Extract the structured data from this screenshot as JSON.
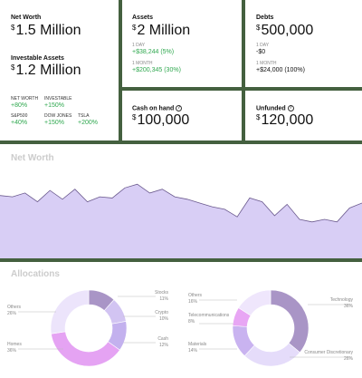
{
  "net_worth_card": {
    "title": "Net Worth",
    "currency": "$",
    "value": "1.5 Million",
    "investable_label": "Investable Assets",
    "investable_currency": "$",
    "investable_value": "1.2 Million",
    "comparisons": [
      {
        "label": "NET WORTH",
        "value": "+80%"
      },
      {
        "label": "INVESTABLE",
        "value": "+150%"
      },
      {
        "label": "S&P500",
        "value": "+40%"
      },
      {
        "label": "DOW JONES",
        "value": "+150%"
      },
      {
        "label": "TSLA",
        "value": "+200%"
      }
    ]
  },
  "assets_card": {
    "title": "Assets",
    "currency": "$",
    "value": "2 Million",
    "day_label": "1 DAY",
    "day_change": "+$38,244 (5%)",
    "month_label": "1 MONTH",
    "month_change": "+$200,345 (30%)"
  },
  "debts_card": {
    "title": "Debts",
    "currency": "$",
    "value": "500,000",
    "day_label": "1 DAY",
    "day_change": "-$0",
    "month_label": "1 MONTH",
    "month_change": "+$24,000 (100%)"
  },
  "cash_card": {
    "title": "Cash on hand",
    "info_icon": "info-icon",
    "currency": "$",
    "value": "100,000"
  },
  "unfunded_card": {
    "title": "Unfunded",
    "info_icon": "info-icon",
    "currency": "$",
    "value": "120,000"
  },
  "net_worth_chart": {
    "title": "Net Worth",
    "fill_color": "#d8cef5",
    "line_color": "#6b5a8e",
    "chart_data": {
      "type": "area",
      "values": [
        50,
        49,
        52,
        45,
        54,
        47,
        55,
        45,
        49,
        48,
        56,
        59,
        52,
        55,
        49,
        47,
        44,
        41,
        39,
        33,
        48,
        45,
        34,
        43,
        31,
        29,
        31,
        29,
        40,
        44
      ]
    }
  },
  "allocations": {
    "title": "Allocations",
    "donut1": {
      "slices": [
        {
          "name": "Stocks",
          "pct": 11,
          "color": "#a995c6"
        },
        {
          "name": "Crypto",
          "pct": 10,
          "color": "#d2c4f2"
        },
        {
          "name": "Cash",
          "pct": 12,
          "color": "#c3b1ee"
        },
        {
          "name": "Homes",
          "pct": 36,
          "color": "#e5a3f3"
        },
        {
          "name": "Others",
          "pct": 26,
          "color": "#ece4fb"
        }
      ],
      "labels": {
        "stocks": {
          "name": "Stocks",
          "pct": "11%"
        },
        "crypto": {
          "name": "Crypto",
          "pct": "10%"
        },
        "cash": {
          "name": "Cash",
          "pct": "12%"
        },
        "homes": {
          "name": "Homes",
          "pct": "36%"
        },
        "others": {
          "name": "Others",
          "pct": "26%"
        }
      }
    },
    "donut2": {
      "slices": [
        {
          "name": "Technology",
          "pct": 36,
          "color": "#a995c6"
        },
        {
          "name": "Consumer Discretionary",
          "pct": 26,
          "color": "#e5dcfa"
        },
        {
          "name": "Materials",
          "pct": 14,
          "color": "#c9b3f0"
        },
        {
          "name": "Telecommunications",
          "pct": 8,
          "color": "#e8a6f4"
        },
        {
          "name": "Others",
          "pct": 16,
          "color": "#efe6fc"
        }
      ],
      "labels": {
        "technology": {
          "name": "Technology",
          "pct": "36%"
        },
        "consumer": {
          "name": "Consumer Discretionary",
          "pct": "26%"
        },
        "materials": {
          "name": "Materials",
          "pct": "14%"
        },
        "telecom": {
          "name": "Telecommunications",
          "pct": "8%"
        },
        "others": {
          "name": "Others",
          "pct": "16%"
        }
      }
    }
  }
}
